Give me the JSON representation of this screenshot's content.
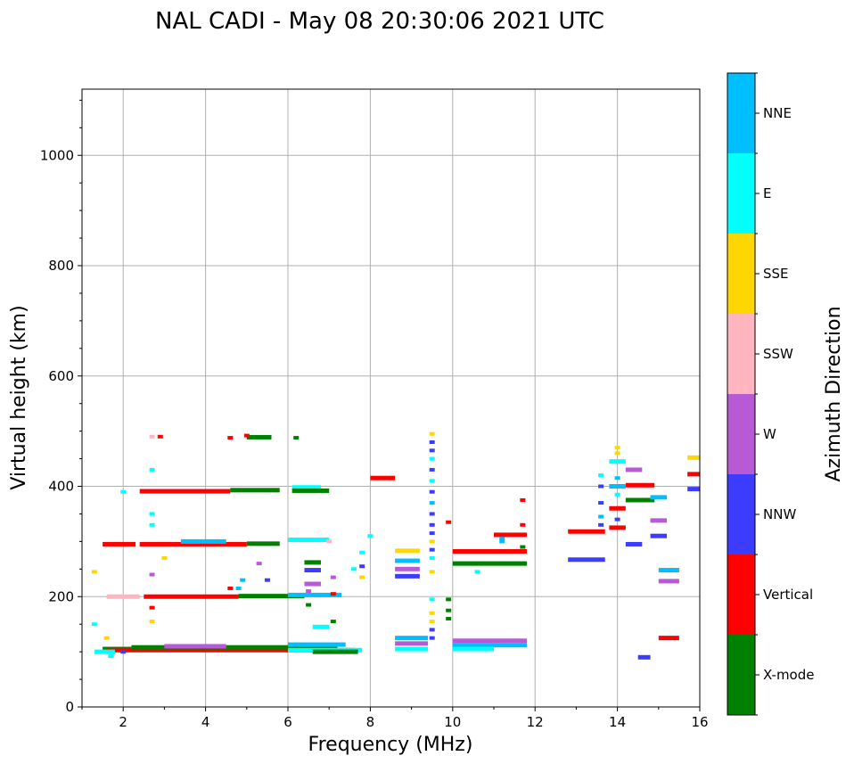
{
  "chart_data": {
    "type": "scatter",
    "title": "NAL CADI - May 08 20:30:06 2021 UTC",
    "xlabel": "Frequency (MHz)",
    "ylabel": "Virtual height (km)",
    "xlim": [
      1,
      16
    ],
    "ylim": [
      0,
      1120
    ],
    "xticks": [
      2,
      4,
      6,
      8,
      10,
      12,
      14,
      16
    ],
    "yticks": [
      0,
      200,
      400,
      600,
      800,
      1000
    ],
    "grid": true,
    "colorbar": {
      "label": "Azimuth Direction",
      "categories": [
        {
          "name": "X-mode",
          "color": "#008000"
        },
        {
          "name": "Vertical",
          "color": "#ff0000"
        },
        {
          "name": "NNW",
          "color": "#3c3cff"
        },
        {
          "name": "W",
          "color": "#b85ad6"
        },
        {
          "name": "SSW",
          "color": "#ffb6c1"
        },
        {
          "name": "SSE",
          "color": "#ffd700"
        },
        {
          "name": "E",
          "color": "#00ffff"
        },
        {
          "name": "NNE",
          "color": "#00bfff"
        }
      ]
    },
    "traces": [
      {
        "x0": 1.5,
        "x1": 2.2,
        "h": 105,
        "c": "X-mode"
      },
      {
        "x0": 1.6,
        "x1": 7.6,
        "h": 103,
        "c": "Vertical"
      },
      {
        "x0": 1.3,
        "x1": 1.8,
        "h": 100,
        "c": "E"
      },
      {
        "x0": 2.2,
        "x1": 7.2,
        "h": 108,
        "c": "X-mode"
      },
      {
        "x0": 3.0,
        "x1": 4.5,
        "h": 110,
        "c": "W"
      },
      {
        "x0": 6.0,
        "x1": 7.8,
        "h": 103,
        "c": "E"
      },
      {
        "x0": 6.0,
        "x1": 7.4,
        "h": 113,
        "c": "NNE"
      },
      {
        "x0": 6.6,
        "x1": 7.7,
        "h": 100,
        "c": "X-mode"
      },
      {
        "x0": 1.6,
        "x1": 2.4,
        "h": 200,
        "c": "SSW"
      },
      {
        "x0": 2.5,
        "x1": 4.8,
        "h": 200,
        "c": "Vertical"
      },
      {
        "x0": 4.8,
        "x1": 6.4,
        "h": 201,
        "c": "X-mode"
      },
      {
        "x0": 6.0,
        "x1": 7.3,
        "h": 203,
        "c": "NNE"
      },
      {
        "x0": 1.5,
        "x1": 2.3,
        "h": 295,
        "c": "Vertical"
      },
      {
        "x0": 2.4,
        "x1": 5.0,
        "h": 295,
        "c": "Vertical"
      },
      {
        "x0": 3.4,
        "x1": 4.5,
        "h": 300,
        "c": "NNE"
      },
      {
        "x0": 5.0,
        "x1": 5.8,
        "h": 296,
        "c": "X-mode"
      },
      {
        "x0": 6.0,
        "x1": 7.0,
        "h": 303,
        "c": "E"
      },
      {
        "x0": 2.4,
        "x1": 4.6,
        "h": 391,
        "c": "Vertical"
      },
      {
        "x0": 4.6,
        "x1": 5.8,
        "h": 393,
        "c": "X-mode"
      },
      {
        "x0": 6.1,
        "x1": 6.8,
        "h": 398,
        "c": "E"
      },
      {
        "x0": 6.1,
        "x1": 7.0,
        "h": 392,
        "c": "X-mode"
      },
      {
        "x0": 5.0,
        "x1": 5.6,
        "h": 489,
        "c": "X-mode"
      },
      {
        "x0": 6.4,
        "x1": 6.8,
        "h": 223,
        "c": "W"
      },
      {
        "x0": 6.4,
        "x1": 6.8,
        "h": 248,
        "c": "NNW"
      },
      {
        "x0": 6.4,
        "x1": 6.8,
        "h": 262,
        "c": "X-mode"
      },
      {
        "x0": 6.6,
        "x1": 7.0,
        "h": 145,
        "c": "E"
      },
      {
        "x0": 8.0,
        "x1": 8.6,
        "h": 415,
        "c": "Vertical"
      },
      {
        "x0": 8.6,
        "x1": 9.2,
        "h": 283,
        "c": "SSE"
      },
      {
        "x0": 8.6,
        "x1": 9.2,
        "h": 265,
        "c": "NNE"
      },
      {
        "x0": 8.6,
        "x1": 9.2,
        "h": 250,
        "c": "W"
      },
      {
        "x0": 8.6,
        "x1": 9.2,
        "h": 237,
        "c": "NNW"
      },
      {
        "x0": 8.6,
        "x1": 9.4,
        "h": 125,
        "c": "NNE"
      },
      {
        "x0": 8.6,
        "x1": 9.4,
        "h": 115,
        "c": "W"
      },
      {
        "x0": 8.6,
        "x1": 9.4,
        "h": 105,
        "c": "E"
      },
      {
        "x0": 10.0,
        "x1": 11.8,
        "h": 112,
        "c": "NNE"
      },
      {
        "x0": 10.0,
        "x1": 11.8,
        "h": 120,
        "c": "W"
      },
      {
        "x0": 10.0,
        "x1": 11.0,
        "h": 105,
        "c": "E"
      },
      {
        "x0": 10.0,
        "x1": 11.8,
        "h": 260,
        "c": "X-mode"
      },
      {
        "x0": 10.0,
        "x1": 11.8,
        "h": 282,
        "c": "Vertical"
      },
      {
        "x0": 11.0,
        "x1": 11.8,
        "h": 312,
        "c": "Vertical"
      },
      {
        "x0": 12.8,
        "x1": 13.7,
        "h": 318,
        "c": "Vertical"
      },
      {
        "x0": 12.8,
        "x1": 13.7,
        "h": 267,
        "c": "NNW"
      },
      {
        "x0": 13.8,
        "x1": 14.2,
        "h": 360,
        "c": "Vertical"
      },
      {
        "x0": 13.8,
        "x1": 14.2,
        "h": 325,
        "c": "Vertical"
      },
      {
        "x0": 13.8,
        "x1": 14.2,
        "h": 445,
        "c": "E"
      },
      {
        "x0": 13.8,
        "x1": 14.2,
        "h": 400,
        "c": "NNE"
      },
      {
        "x0": 14.2,
        "x1": 14.9,
        "h": 402,
        "c": "Vertical"
      },
      {
        "x0": 14.2,
        "x1": 14.9,
        "h": 375,
        "c": "X-mode"
      },
      {
        "x0": 14.2,
        "x1": 14.6,
        "h": 430,
        "c": "W"
      },
      {
        "x0": 14.2,
        "x1": 14.6,
        "h": 295,
        "c": "NNW"
      },
      {
        "x0": 14.8,
        "x1": 15.2,
        "h": 380,
        "c": "NNE"
      },
      {
        "x0": 14.8,
        "x1": 15.2,
        "h": 338,
        "c": "W"
      },
      {
        "x0": 14.8,
        "x1": 15.2,
        "h": 310,
        "c": "NNW"
      },
      {
        "x0": 15.0,
        "x1": 15.5,
        "h": 248,
        "c": "NNE"
      },
      {
        "x0": 15.0,
        "x1": 15.5,
        "h": 228,
        "c": "W"
      },
      {
        "x0": 15.0,
        "x1": 15.5,
        "h": 125,
        "c": "Vertical"
      },
      {
        "x0": 15.7,
        "x1": 16.0,
        "h": 422,
        "c": "Vertical"
      },
      {
        "x0": 15.7,
        "x1": 16.0,
        "h": 452,
        "c": "SSE"
      },
      {
        "x0": 15.7,
        "x1": 16.0,
        "h": 395,
        "c": "NNW"
      },
      {
        "x0": 14.5,
        "x1": 14.8,
        "h": 90,
        "c": "NNW"
      }
    ],
    "points": [
      {
        "x": 9.5,
        "h": 495,
        "c": "SSE"
      },
      {
        "x": 9.5,
        "h": 480,
        "c": "NNW"
      },
      {
        "x": 9.5,
        "h": 465,
        "c": "NNW"
      },
      {
        "x": 9.5,
        "h": 450,
        "c": "E"
      },
      {
        "x": 9.5,
        "h": 430,
        "c": "NNW"
      },
      {
        "x": 9.5,
        "h": 410,
        "c": "E"
      },
      {
        "x": 9.5,
        "h": 390,
        "c": "NNW"
      },
      {
        "x": 9.5,
        "h": 370,
        "c": "NNE"
      },
      {
        "x": 9.5,
        "h": 350,
        "c": "NNW"
      },
      {
        "x": 9.5,
        "h": 330,
        "c": "NNW"
      },
      {
        "x": 9.5,
        "h": 315,
        "c": "NNW"
      },
      {
        "x": 9.5,
        "h": 300,
        "c": "SSE"
      },
      {
        "x": 9.5,
        "h": 285,
        "c": "NNW"
      },
      {
        "x": 9.5,
        "h": 270,
        "c": "E"
      },
      {
        "x": 9.5,
        "h": 245,
        "c": "SSE"
      },
      {
        "x": 9.5,
        "h": 195,
        "c": "E"
      },
      {
        "x": 9.5,
        "h": 170,
        "c": "SSE"
      },
      {
        "x": 9.5,
        "h": 155,
        "c": "SSE"
      },
      {
        "x": 9.5,
        "h": 140,
        "c": "NNW"
      },
      {
        "x": 9.5,
        "h": 125,
        "c": "NNW"
      },
      {
        "x": 9.9,
        "h": 195,
        "c": "X-mode"
      },
      {
        "x": 9.9,
        "h": 175,
        "c": "X-mode"
      },
      {
        "x": 9.9,
        "h": 160,
        "c": "X-mode"
      },
      {
        "x": 9.9,
        "h": 335,
        "c": "Vertical"
      },
      {
        "x": 13.6,
        "h": 420,
        "c": "E"
      },
      {
        "x": 13.6,
        "h": 400,
        "c": "NNW"
      },
      {
        "x": 13.6,
        "h": 370,
        "c": "NNW"
      },
      {
        "x": 13.6,
        "h": 345,
        "c": "NNE"
      },
      {
        "x": 13.6,
        "h": 330,
        "c": "NNW"
      },
      {
        "x": 14.0,
        "h": 470,
        "c": "SSE"
      },
      {
        "x": 14.0,
        "h": 460,
        "c": "SSE"
      },
      {
        "x": 14.0,
        "h": 415,
        "c": "NNE"
      },
      {
        "x": 14.0,
        "h": 385,
        "c": "E"
      },
      {
        "x": 14.0,
        "h": 340,
        "c": "NNW"
      },
      {
        "x": 11.7,
        "h": 375,
        "c": "Vertical"
      },
      {
        "x": 11.7,
        "h": 330,
        "c": "Vertical"
      },
      {
        "x": 11.7,
        "h": 290,
        "c": "X-mode"
      },
      {
        "x": 11.2,
        "h": 305,
        "c": "NNE"
      },
      {
        "x": 11.2,
        "h": 300,
        "c": "NNE"
      },
      {
        "x": 10.6,
        "h": 245,
        "c": "E"
      },
      {
        "x": 7.8,
        "h": 280,
        "c": "E"
      },
      {
        "x": 7.8,
        "h": 255,
        "c": "NNW"
      },
      {
        "x": 7.8,
        "h": 235,
        "c": "SSE"
      },
      {
        "x": 7.6,
        "h": 250,
        "c": "E"
      },
      {
        "x": 7.1,
        "h": 235,
        "c": "W"
      },
      {
        "x": 7.1,
        "h": 205,
        "c": "Vertical"
      },
      {
        "x": 7.1,
        "h": 155,
        "c": "X-mode"
      },
      {
        "x": 7.0,
        "h": 300,
        "c": "SSW"
      },
      {
        "x": 8.0,
        "h": 310,
        "c": "E"
      },
      {
        "x": 6.2,
        "h": 488,
        "c": "X-mode"
      },
      {
        "x": 5.0,
        "h": 492,
        "c": "Vertical"
      },
      {
        "x": 4.6,
        "h": 488,
        "c": "Vertical"
      },
      {
        "x": 2.7,
        "h": 490,
        "c": "SSW"
      },
      {
        "x": 2.9,
        "h": 490,
        "c": "Vertical"
      },
      {
        "x": 2.7,
        "h": 430,
        "c": "E"
      },
      {
        "x": 2.7,
        "h": 350,
        "c": "E"
      },
      {
        "x": 2.7,
        "h": 330,
        "c": "E"
      },
      {
        "x": 2.0,
        "h": 390,
        "c": "E"
      },
      {
        "x": 3.0,
        "h": 270,
        "c": "SSE"
      },
      {
        "x": 2.7,
        "h": 240,
        "c": "W"
      },
      {
        "x": 2.7,
        "h": 180,
        "c": "Vertical"
      },
      {
        "x": 2.7,
        "h": 155,
        "c": "SSE"
      },
      {
        "x": 1.3,
        "h": 245,
        "c": "SSE"
      },
      {
        "x": 1.3,
        "h": 150,
        "c": "E"
      },
      {
        "x": 1.6,
        "h": 125,
        "c": "SSE"
      },
      {
        "x": 1.7,
        "h": 92,
        "c": "E"
      },
      {
        "x": 2.0,
        "h": 100,
        "c": "NNW"
      },
      {
        "x": 5.3,
        "h": 260,
        "c": "W"
      },
      {
        "x": 4.9,
        "h": 230,
        "c": "NNE"
      },
      {
        "x": 5.5,
        "h": 230,
        "c": "NNW"
      },
      {
        "x": 4.6,
        "h": 215,
        "c": "Vertical"
      },
      {
        "x": 4.8,
        "h": 215,
        "c": "NNE"
      },
      {
        "x": 6.5,
        "h": 210,
        "c": "W"
      },
      {
        "x": 6.5,
        "h": 185,
        "c": "X-mode"
      }
    ]
  }
}
